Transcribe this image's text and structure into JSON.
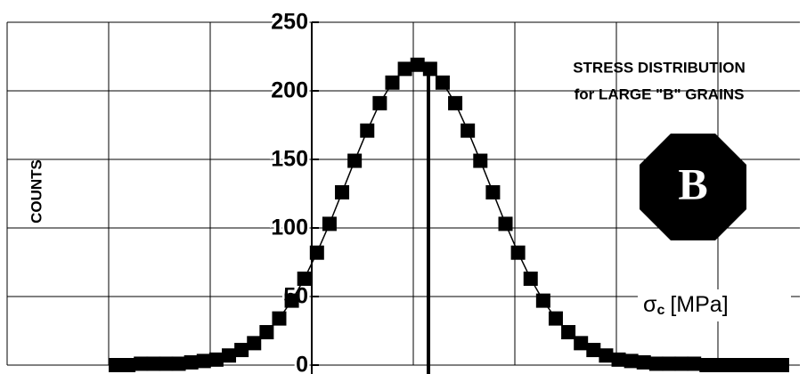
{
  "chart_data": {
    "type": "line",
    "title": [
      "STRESS DISTRIBUTION",
      "for LARGE \"B\" GRAINS"
    ],
    "ylabel": "COUNTS",
    "xlabel": {
      "symbol": "σ",
      "subscript": "c",
      "unit": "[MPa]"
    },
    "badge": "B",
    "categories": [
      null,
      null,
      null,
      null,
      null,
      null,
      null,
      null,
      null,
      null,
      null,
      null,
      null,
      null,
      null,
      null,
      null,
      null,
      null,
      null,
      null,
      null,
      null,
      null,
      null,
      null,
      null,
      null,
      null,
      null,
      null,
      null,
      null,
      null,
      null,
      null,
      null,
      null,
      null,
      null,
      null,
      null,
      null,
      null,
      null,
      null,
      null,
      null,
      null,
      null,
      null,
      null,
      null,
      null
    ],
    "values": [
      0,
      0,
      1,
      1,
      1,
      1,
      2,
      3,
      4,
      7,
      11,
      16,
      24,
      34,
      47,
      63,
      82,
      103,
      126,
      149,
      171,
      191,
      206,
      216,
      219,
      216,
      206,
      191,
      171,
      149,
      126,
      103,
      82,
      63,
      47,
      34,
      24,
      16,
      11,
      7,
      4,
      3,
      2,
      1,
      1,
      1,
      1,
      0,
      0,
      0,
      0,
      0,
      0,
      0
    ],
    "color": "#000000",
    "ylim": [
      0,
      250
    ],
    "yticks": [
      0,
      50,
      100,
      150,
      200,
      250
    ],
    "grid": true
  }
}
